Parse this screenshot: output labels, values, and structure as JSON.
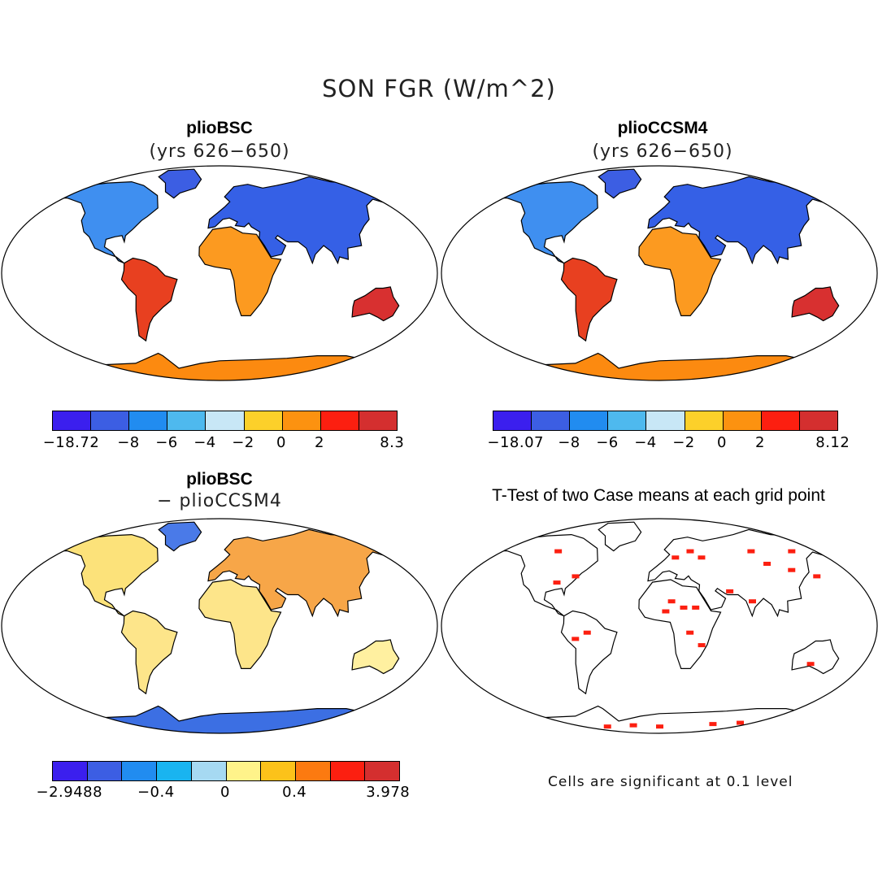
{
  "figure_title": "SON FGR (W/m^2)",
  "panels": [
    {
      "title": "plioBSC",
      "subtitle": "(yrs 626−650)",
      "colorbar": {
        "colors": [
          "#3b1fee",
          "#3c5ee3",
          "#218cf0",
          "#4eb9ee",
          "#c8e7f6",
          "#fcd02a",
          "#fc9210",
          "#fc1f10",
          "#d42f2f"
        ],
        "labels": [
          "−18.72",
          "−8",
          "−6",
          "−4",
          "−2",
          "0",
          "2",
          "8.3"
        ]
      }
    },
    {
      "title": "plioCCSM4",
      "subtitle": "(yrs 626−650)",
      "colorbar": {
        "colors": [
          "#3b1fee",
          "#3c5ee3",
          "#218cf0",
          "#4eb9ee",
          "#c8e7f6",
          "#fcd02a",
          "#fc9210",
          "#fc1f10",
          "#d42f2f"
        ],
        "labels": [
          "−18.07",
          "−8",
          "−6",
          "−4",
          "−2",
          "0",
          "2",
          "8.12"
        ]
      }
    },
    {
      "title": "plioBSC",
      "subtitle": "− plioCCSM4",
      "colorbar": {
        "colors": [
          "#3b1fee",
          "#3c5ee3",
          "#218cf0",
          "#19b4f0",
          "#a6d9f2",
          "#fff38a",
          "#fcc21a",
          "#fc7a10",
          "#fc1f10",
          "#d42f2f"
        ],
        "labels": [
          "−2.9488",
          "−0.4",
          "0",
          "0.4",
          "3.978"
        ]
      }
    },
    {
      "title": "T-Test of two Case means at each grid point",
      "subtitle": "",
      "note": "Cells are significant at 0.1 level"
    }
  ]
}
